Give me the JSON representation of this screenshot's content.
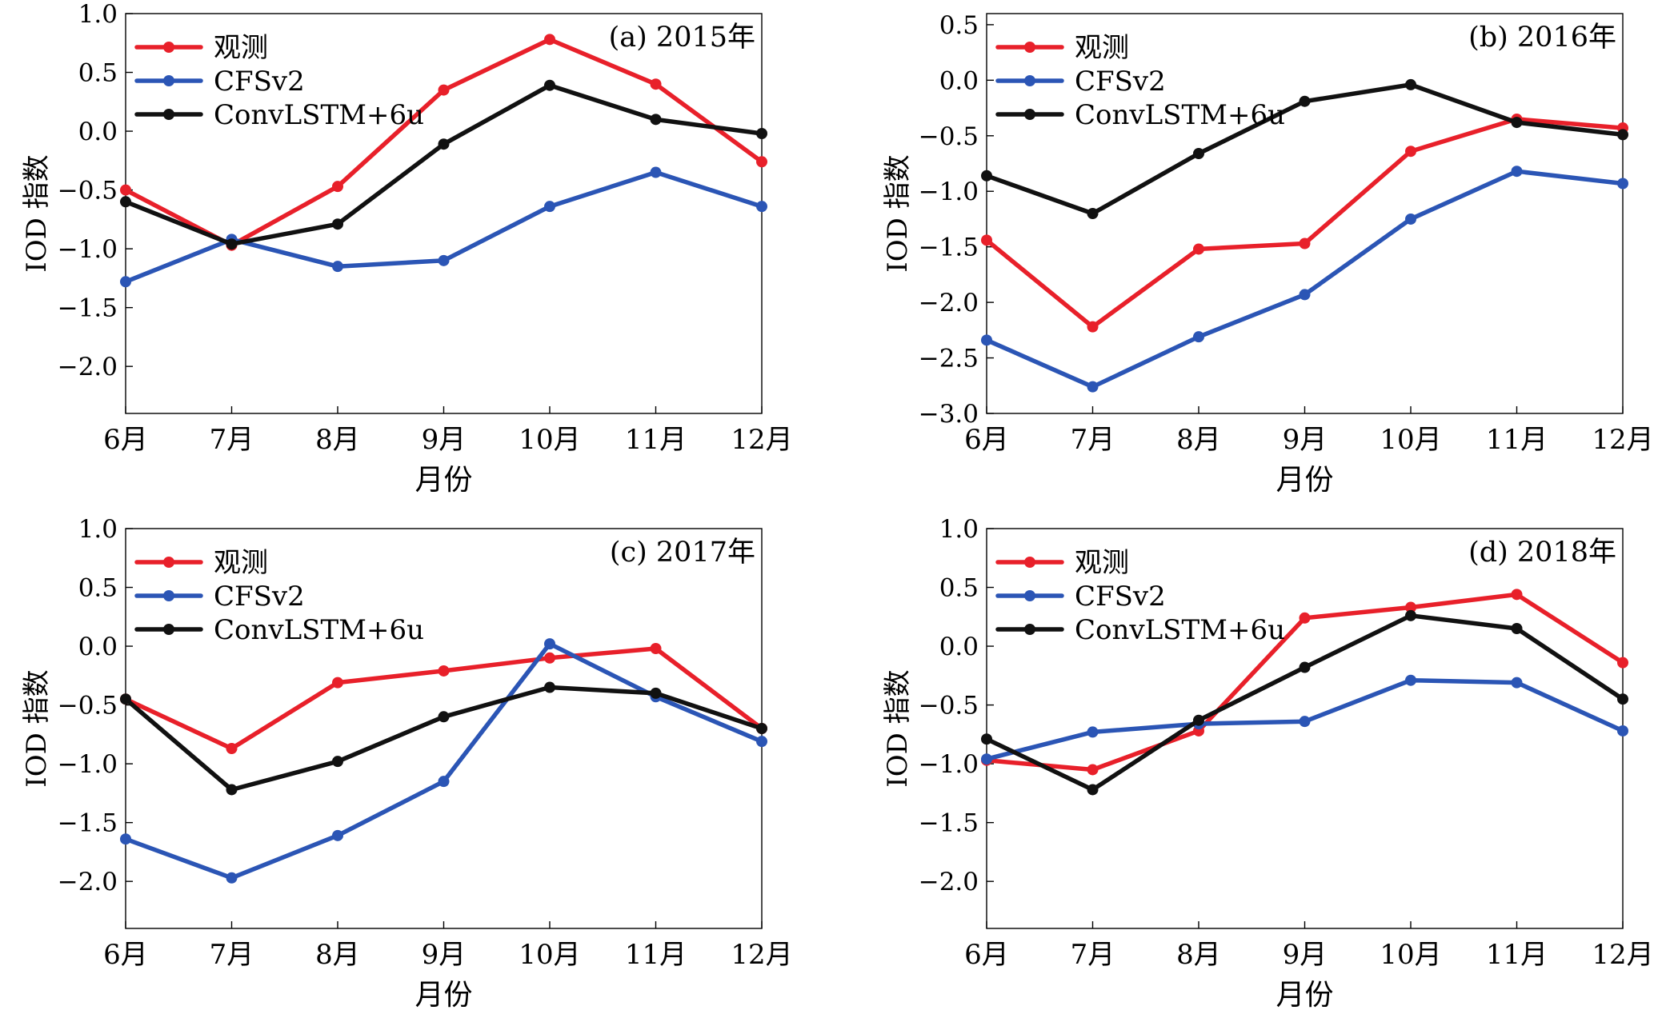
{
  "legend_labels": [
    "观测",
    "CFSv2",
    "ConvLSTM+6u"
  ],
  "colors": {
    "obs": "#e8202a",
    "cfs": "#2b55b5",
    "lstm": "#111111"
  },
  "chart_data": [
    {
      "type": "line",
      "panel_label": "(a) 2015年",
      "categories": [
        "6月",
        "7月",
        "8月",
        "9月",
        "10月",
        "11月",
        "12月"
      ],
      "xlabel": "月份",
      "ylabel": "IOD 指数",
      "ylim": [
        -2.4,
        1.0
      ],
      "yticks": [
        1.0,
        0.5,
        0.0,
        -0.5,
        -1.0,
        -1.5,
        -2.0
      ],
      "ytick_labels": [
        "1.0",
        "0.5",
        "0.0",
        "−0.5",
        "−1.0",
        "−1.5",
        "−2.0"
      ],
      "legend_position": "top-left",
      "series": [
        {
          "name": "观测",
          "color": "#e8202a",
          "values": [
            -0.5,
            -0.97,
            -0.47,
            0.35,
            0.78,
            0.4,
            -0.26
          ]
        },
        {
          "name": "CFSv2",
          "color": "#2b55b5",
          "values": [
            -1.28,
            -0.92,
            -1.15,
            -1.1,
            -0.64,
            -0.35,
            -0.64
          ]
        },
        {
          "name": "ConvLSTM+6u",
          "color": "#111111",
          "values": [
            -0.6,
            -0.96,
            -0.79,
            -0.11,
            0.39,
            0.1,
            -0.02
          ]
        }
      ]
    },
    {
      "type": "line",
      "panel_label": "(b) 2016年",
      "categories": [
        "6月",
        "7月",
        "8月",
        "9月",
        "10月",
        "11月",
        "12月"
      ],
      "xlabel": "月份",
      "ylabel": "IOD 指数",
      "ylim": [
        -3.0,
        0.6
      ],
      "yticks": [
        0.5,
        0.0,
        -0.5,
        -1.0,
        -1.5,
        -2.0,
        -2.5,
        -3.0
      ],
      "ytick_labels": [
        "0.5",
        "0.0",
        "−0.5",
        "−1.0",
        "−1.5",
        "−2.0",
        "−2.5",
        "−3.0"
      ],
      "legend_position": "top-left",
      "series": [
        {
          "name": "观测",
          "color": "#e8202a",
          "values": [
            -1.44,
            -2.22,
            -1.52,
            -1.47,
            -0.64,
            -0.35,
            -0.43
          ]
        },
        {
          "name": "CFSv2",
          "color": "#2b55b5",
          "values": [
            -2.34,
            -2.76,
            -2.31,
            -1.93,
            -1.25,
            -0.82,
            -0.93
          ]
        },
        {
          "name": "ConvLSTM+6u",
          "color": "#111111",
          "values": [
            -0.86,
            -1.2,
            -0.66,
            -0.19,
            -0.04,
            -0.38,
            -0.49
          ]
        }
      ]
    },
    {
      "type": "line",
      "panel_label": "(c) 2017年",
      "categories": [
        "6月",
        "7月",
        "8月",
        "9月",
        "10月",
        "11月",
        "12月"
      ],
      "xlabel": "月份",
      "ylabel": "IOD 指数",
      "ylim": [
        -2.4,
        1.0
      ],
      "yticks": [
        1.0,
        0.5,
        0.0,
        -0.5,
        -1.0,
        -1.5,
        -2.0
      ],
      "ytick_labels": [
        "1.0",
        "0.5",
        "0.0",
        "−0.5",
        "−1.0",
        "−1.5",
        "−2.0"
      ],
      "legend_position": "top-left",
      "series": [
        {
          "name": "观测",
          "color": "#e8202a",
          "values": [
            -0.45,
            -0.87,
            -0.31,
            -0.21,
            -0.1,
            -0.02,
            -0.7
          ]
        },
        {
          "name": "CFSv2",
          "color": "#2b55b5",
          "values": [
            -1.64,
            -1.97,
            -1.61,
            -1.15,
            0.02,
            -0.43,
            -0.81
          ]
        },
        {
          "name": "ConvLSTM+6u",
          "color": "#111111",
          "values": [
            -0.45,
            -1.22,
            -0.98,
            -0.6,
            -0.35,
            -0.4,
            -0.7
          ]
        }
      ]
    },
    {
      "type": "line",
      "panel_label": "(d) 2018年",
      "categories": [
        "6月",
        "7月",
        "8月",
        "9月",
        "10月",
        "11月",
        "12月"
      ],
      "xlabel": "月份",
      "ylabel": "IOD 指数",
      "ylim": [
        -2.4,
        1.0
      ],
      "yticks": [
        1.0,
        0.5,
        0.0,
        -0.5,
        -1.0,
        -1.5,
        -2.0
      ],
      "ytick_labels": [
        "1.0",
        "0.5",
        "0.0",
        "−0.5",
        "−1.0",
        "−1.5",
        "−2.0"
      ],
      "legend_position": "top-left",
      "series": [
        {
          "name": "观测",
          "color": "#e8202a",
          "values": [
            -0.97,
            -1.05,
            -0.72,
            0.24,
            0.33,
            0.44,
            -0.14
          ]
        },
        {
          "name": "CFSv2",
          "color": "#2b55b5",
          "values": [
            -0.96,
            -0.73,
            -0.66,
            -0.64,
            -0.29,
            -0.31,
            -0.72
          ]
        },
        {
          "name": "ConvLSTM+6u",
          "color": "#111111",
          "values": [
            -0.79,
            -1.22,
            -0.63,
            -0.18,
            0.26,
            0.15,
            -0.45
          ]
        }
      ]
    }
  ]
}
